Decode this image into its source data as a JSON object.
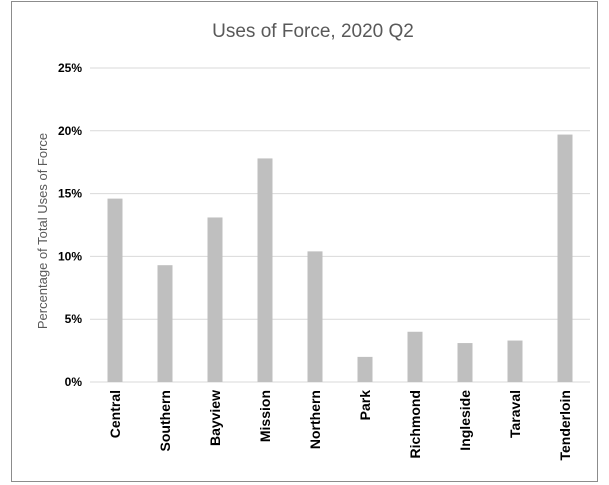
{
  "chart_data": {
    "type": "bar",
    "title": "Uses of Force, 2020 Q2",
    "xlabel": "",
    "ylabel": "Percentage of Total Uses of Force",
    "categories": [
      "Central",
      "Southern",
      "Bayview",
      "Mission",
      "Northern",
      "Park",
      "Richmond",
      "Ingleside",
      "Taraval",
      "Tenderloin"
    ],
    "values": [
      14.6,
      9.3,
      13.1,
      17.8,
      10.4,
      2.0,
      4.0,
      3.1,
      3.3,
      19.7
    ],
    "yticks": [
      "0%",
      "5%",
      "10%",
      "15%",
      "20%",
      "25%"
    ],
    "ylim": [
      0,
      25
    ],
    "grid": true,
    "legend": "none",
    "bar_color": "#bfbfbf",
    "grid_color": "#d9d9d9"
  }
}
